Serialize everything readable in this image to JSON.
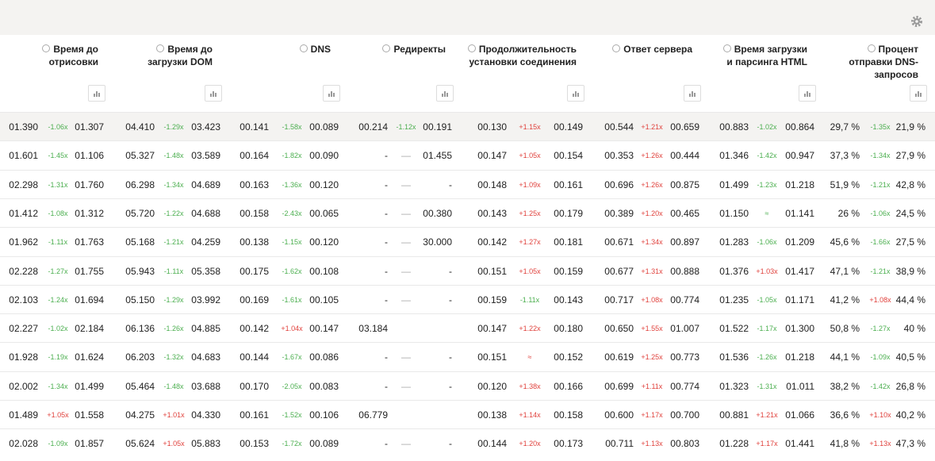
{
  "columns": [
    "Время до\nотрисовки",
    "Время до\nзагрузки DOM",
    "DNS",
    "Редиректы",
    "Продолжительность\nустановки соединения",
    "Ответ сервера",
    "Время загрузки\nи парсинга HTML",
    "Процент\nотправки DNS-\nзапросов"
  ],
  "rows": [
    [
      [
        "01.390",
        "-1.06x",
        "01.307"
      ],
      [
        "04.410",
        "-1.29x",
        "03.423"
      ],
      [
        "00.141",
        "-1.58x",
        "00.089"
      ],
      [
        "00.214",
        "-1.12x",
        "00.191"
      ],
      [
        "00.130",
        "+1.15x",
        "00.149"
      ],
      [
        "00.544",
        "+1.21x",
        "00.659"
      ],
      [
        "00.883",
        "-1.02x",
        "00.864"
      ],
      [
        "29,7 %",
        "-1.35x",
        "21,9 %"
      ]
    ],
    [
      [
        "01.601",
        "-1.45x",
        "01.106"
      ],
      [
        "05.327",
        "-1.48x",
        "03.589"
      ],
      [
        "00.164",
        "-1.82x",
        "00.090"
      ],
      [
        "-",
        "—",
        "01.455"
      ],
      [
        "00.147",
        "+1.05x",
        "00.154"
      ],
      [
        "00.353",
        "+1.26x",
        "00.444"
      ],
      [
        "01.346",
        "-1.42x",
        "00.947"
      ],
      [
        "37,3 %",
        "-1.34x",
        "27,9 %"
      ]
    ],
    [
      [
        "02.298",
        "-1.31x",
        "01.760"
      ],
      [
        "06.298",
        "-1.34x",
        "04.689"
      ],
      [
        "00.163",
        "-1.36x",
        "00.120"
      ],
      [
        "-",
        "—",
        "-"
      ],
      [
        "00.148",
        "+1.09x",
        "00.161"
      ],
      [
        "00.696",
        "+1.26x",
        "00.875"
      ],
      [
        "01.499",
        "-1.23x",
        "01.218"
      ],
      [
        "51,9 %",
        "-1.21x",
        "42,8 %"
      ]
    ],
    [
      [
        "01.412",
        "-1.08x",
        "01.312"
      ],
      [
        "05.720",
        "-1.22x",
        "04.688"
      ],
      [
        "00.158",
        "-2.43x",
        "00.065"
      ],
      [
        "-",
        "—",
        "00.380"
      ],
      [
        "00.143",
        "+1.25x",
        "00.179"
      ],
      [
        "00.389",
        "+1.20x",
        "00.465"
      ],
      [
        "01.150",
        {
          "text": "≈",
          "color": "#4caf50"
        },
        "01.141"
      ],
      [
        "26 %",
        "-1.06x",
        "24,5 %"
      ]
    ],
    [
      [
        "01.962",
        "-1.11x",
        "01.763"
      ],
      [
        "05.168",
        "-1.21x",
        "04.259"
      ],
      [
        "00.138",
        "-1.15x",
        "00.120"
      ],
      [
        "-",
        "—",
        "30.000"
      ],
      [
        "00.142",
        "+1.27x",
        "00.181"
      ],
      [
        "00.671",
        "+1.34x",
        "00.897"
      ],
      [
        "01.283",
        "-1.06x",
        "01.209"
      ],
      [
        "45,6 %",
        "-1.66x",
        "27,5 %"
      ]
    ],
    [
      [
        "02.228",
        "-1.27x",
        "01.755"
      ],
      [
        "05.943",
        "-1.11x",
        "05.358"
      ],
      [
        "00.175",
        "-1.62x",
        "00.108"
      ],
      [
        "-",
        "—",
        "-"
      ],
      [
        "00.151",
        "+1.05x",
        "00.159"
      ],
      [
        "00.677",
        "+1.31x",
        "00.888"
      ],
      [
        "01.376",
        "+1.03x",
        "01.417"
      ],
      [
        "47,1 %",
        "-1.21x",
        "38,9 %"
      ]
    ],
    [
      [
        "02.103",
        "-1.24x",
        "01.694"
      ],
      [
        "05.150",
        "-1.29x",
        "03.992"
      ],
      [
        "00.169",
        "-1.61x",
        "00.105"
      ],
      [
        "-",
        "—",
        "-"
      ],
      [
        "00.159",
        "-1.11x",
        "00.143"
      ],
      [
        "00.717",
        "+1.08x",
        "00.774"
      ],
      [
        "01.235",
        "-1.05x",
        "01.171"
      ],
      [
        "41,2 %",
        "+1.08x",
        "44,4 %"
      ]
    ],
    [
      [
        "02.227",
        "-1.02x",
        "02.184"
      ],
      [
        "06.136",
        "-1.26x",
        "04.885"
      ],
      [
        "00.142",
        "+1.04x",
        "00.147"
      ],
      [
        "03.184",
        null,
        null
      ],
      [
        "00.147",
        "+1.22x",
        "00.180"
      ],
      [
        "00.650",
        "+1.55x",
        "01.007"
      ],
      [
        "01.522",
        "-1.17x",
        "01.300"
      ],
      [
        "50,8 %",
        "-1.27x",
        "40 %"
      ]
    ],
    [
      [
        "01.928",
        "-1.19x",
        "01.624"
      ],
      [
        "06.203",
        "-1.32x",
        "04.683"
      ],
      [
        "00.144",
        "-1.67x",
        "00.086"
      ],
      [
        "-",
        "—",
        "-"
      ],
      [
        "00.151",
        {
          "text": "≈",
          "color": "#e0413c"
        },
        "00.152"
      ],
      [
        "00.619",
        "+1.25x",
        "00.773"
      ],
      [
        "01.536",
        "-1.26x",
        "01.218"
      ],
      [
        "44,1 %",
        "-1.09x",
        "40,5 %"
      ]
    ],
    [
      [
        "02.002",
        "-1.34x",
        "01.499"
      ],
      [
        "05.464",
        "-1.48x",
        "03.688"
      ],
      [
        "00.170",
        "-2.05x",
        "00.083"
      ],
      [
        "-",
        "—",
        "-"
      ],
      [
        "00.120",
        "+1.38x",
        "00.166"
      ],
      [
        "00.699",
        "+1.11x",
        "00.774"
      ],
      [
        "01.323",
        "-1.31x",
        "01.011"
      ],
      [
        "38,2 %",
        "-1.42x",
        "26,8 %"
      ]
    ],
    [
      [
        "01.489",
        "+1.05x",
        "01.558"
      ],
      [
        "04.275",
        "+1.01x",
        "04.330"
      ],
      [
        "00.161",
        "-1.52x",
        "00.106"
      ],
      [
        "06.779",
        null,
        null
      ],
      [
        "00.138",
        "+1.14x",
        "00.158"
      ],
      [
        "00.600",
        "+1.17x",
        "00.700"
      ],
      [
        "00.881",
        "+1.21x",
        "01.066"
      ],
      [
        "36,6 %",
        "+1.10x",
        "40,2 %"
      ]
    ],
    [
      [
        "02.028",
        "-1.09x",
        "01.857"
      ],
      [
        "05.624",
        "+1.05x",
        "05.883"
      ],
      [
        "00.153",
        "-1.72x",
        "00.089"
      ],
      [
        "-",
        "—",
        "-"
      ],
      [
        "00.144",
        "+1.20x",
        "00.173"
      ],
      [
        "00.711",
        "+1.13x",
        "00.803"
      ],
      [
        "01.228",
        "+1.17x",
        "01.441"
      ],
      [
        "41,8 %",
        "+1.13x",
        "47,3 %"
      ]
    ]
  ]
}
